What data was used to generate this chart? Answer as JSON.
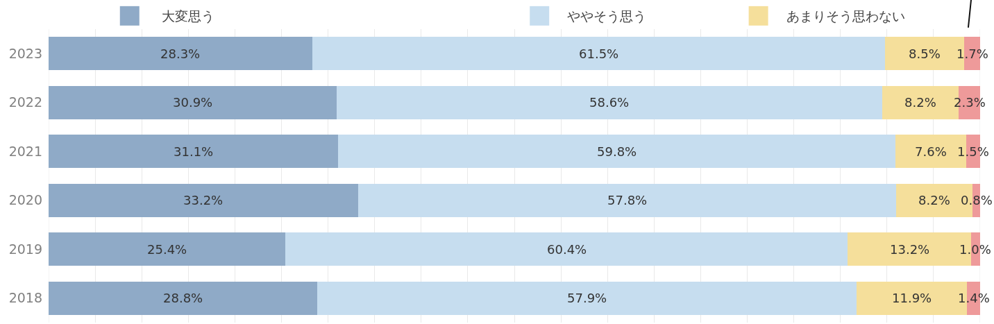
{
  "chart_data": {
    "type": "bar",
    "orientation": "horizontal",
    "stacked": true,
    "categories": [
      "2023",
      "2022",
      "2021",
      "2020",
      "2019",
      "2018"
    ],
    "series": [
      {
        "name": "大変思う",
        "color": "#8faac7",
        "values": [
          28.3,
          30.9,
          31.1,
          33.2,
          25.4,
          28.8
        ],
        "value_labels": [
          "28.3%",
          "30.9%",
          "31.1%",
          "33.2%",
          "25.4%",
          "28.8%"
        ]
      },
      {
        "name": "ややそう思う",
        "color": "#c6ddef",
        "values": [
          61.5,
          58.6,
          59.8,
          57.8,
          60.4,
          57.9
        ],
        "value_labels": [
          "61.5%",
          "58.6%",
          "59.8%",
          "57.8%",
          "60.4%",
          "57.9%"
        ]
      },
      {
        "name": "あまりそう思わない",
        "color": "#f5df9b",
        "values": [
          8.5,
          8.2,
          7.6,
          8.2,
          13.2,
          11.9
        ],
        "value_labels": [
          "8.5%",
          "8.2%",
          "7.6%",
          "8.2%",
          "13.2%",
          "11.9%"
        ]
      },
      {
        "color": "#ee9a9a",
        "values": [
          1.7,
          2.3,
          1.5,
          0.8,
          1.0,
          1.4
        ],
        "value_labels": [
          "1.7%",
          "2.3%",
          "1.5%",
          "0.8%",
          "1.0%",
          "1.4%"
        ]
      }
    ],
    "xlim": [
      0,
      100
    ],
    "xticks": [
      {
        "value": 0,
        "label": null
      },
      {
        "value": 5,
        "label": null
      },
      {
        "value": 10,
        "label": null
      },
      {
        "value": 15,
        "label": null
      },
      {
        "value": 20,
        "label": null
      },
      {
        "value": 25,
        "label": null
      },
      {
        "value": 30,
        "label": null
      },
      {
        "value": 35,
        "label": null
      },
      {
        "value": 40,
        "label": null
      },
      {
        "value": 45,
        "label": null
      },
      {
        "value": 50,
        "label": null
      },
      {
        "value": 55,
        "label": null
      },
      {
        "value": 60,
        "label": null
      },
      {
        "value": 65,
        "label": null
      },
      {
        "value": 70,
        "label": null
      },
      {
        "value": 75,
        "label": null
      },
      {
        "value": 80,
        "label": null
      },
      {
        "value": 85,
        "label": null
      },
      {
        "value": 90,
        "label": null
      },
      {
        "value": 95,
        "label": null
      },
      {
        "value": 100,
        "label": null
      }
    ],
    "grid": "x",
    "legend": "top",
    "tick_labels": "y"
  }
}
